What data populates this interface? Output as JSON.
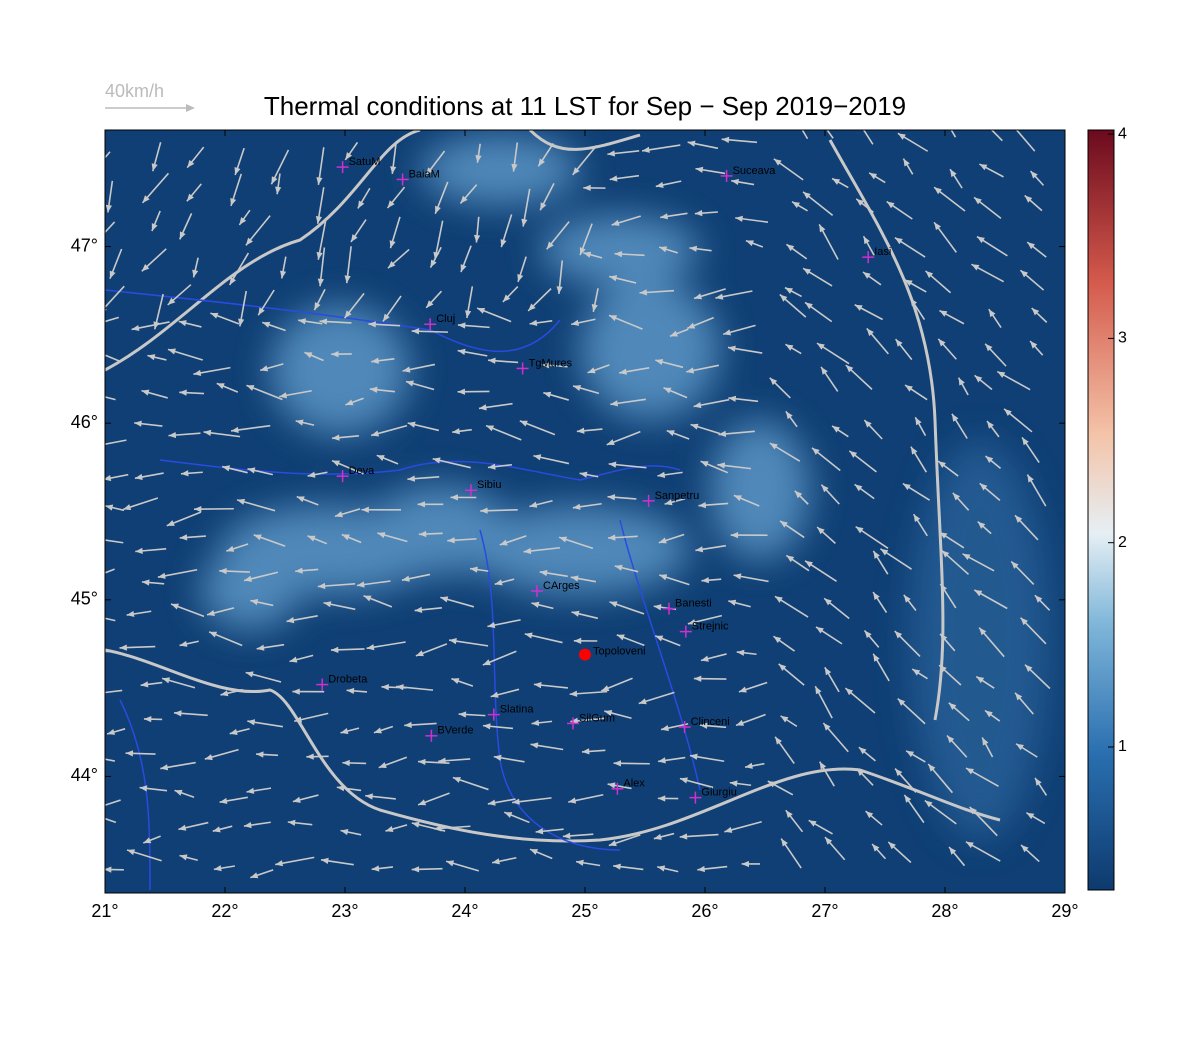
{
  "title": "Thermal conditions at 11 LST for Sep − Sep  2019−2019",
  "wind_legend": "40km/h",
  "map": {
    "xlim": [
      21,
      29
    ],
    "ylim": [
      43.34,
      47.66
    ],
    "xticks": [
      {
        "value": 21,
        "label": "21°"
      },
      {
        "value": 22,
        "label": "22°"
      },
      {
        "value": 23,
        "label": "23°"
      },
      {
        "value": 24,
        "label": "24°"
      },
      {
        "value": 25,
        "label": "25°"
      },
      {
        "value": 26,
        "label": "26°"
      },
      {
        "value": 27,
        "label": "27°"
      },
      {
        "value": 28,
        "label": "28°"
      },
      {
        "value": 29,
        "label": "29°"
      }
    ],
    "yticks": [
      {
        "value": 44,
        "label": "44°"
      },
      {
        "value": 45,
        "label": "45°"
      },
      {
        "value": 46,
        "label": "46°"
      },
      {
        "value": 47,
        "label": "47°"
      }
    ],
    "cities": [
      {
        "name": "SatuM",
        "lon": 22.98,
        "lat": 47.45
      },
      {
        "name": "BaiaM",
        "lon": 23.48,
        "lat": 47.38
      },
      {
        "name": "Suceava",
        "lon": 26.18,
        "lat": 47.4
      },
      {
        "name": "Iasi",
        "lon": 27.36,
        "lat": 46.94
      },
      {
        "name": "Cluj",
        "lon": 23.71,
        "lat": 46.56
      },
      {
        "name": "TgMures",
        "lon": 24.48,
        "lat": 46.31
      },
      {
        "name": "Deva",
        "lon": 22.98,
        "lat": 45.7
      },
      {
        "name": "Sibiu",
        "lon": 24.05,
        "lat": 45.62
      },
      {
        "name": "Sanpetru",
        "lon": 25.53,
        "lat": 45.56
      },
      {
        "name": "CArges",
        "lon": 24.6,
        "lat": 45.05
      },
      {
        "name": "Banesti",
        "lon": 25.7,
        "lat": 44.95
      },
      {
        "name": "Strejnic",
        "lon": 25.84,
        "lat": 44.82
      },
      {
        "name": "Drobeta",
        "lon": 22.81,
        "lat": 44.52
      },
      {
        "name": "Slatina",
        "lon": 24.24,
        "lat": 44.35
      },
      {
        "name": "SilGum",
        "lon": 24.9,
        "lat": 44.3
      },
      {
        "name": "BVerde",
        "lon": 23.72,
        "lat": 44.23
      },
      {
        "name": "Clinceni",
        "lon": 25.83,
        "lat": 44.28
      },
      {
        "name": "Alex",
        "lon": 25.27,
        "lat": 43.93
      },
      {
        "name": "Giurgiu",
        "lon": 25.92,
        "lat": 43.88
      }
    ],
    "highlight": {
      "name": "Topoloveni",
      "lon": 25.0,
      "lat": 44.69
    }
  },
  "colorbar": {
    "lim": [
      0.3,
      4.02
    ],
    "ticks": [
      1,
      2,
      3,
      4
    ]
  }
}
